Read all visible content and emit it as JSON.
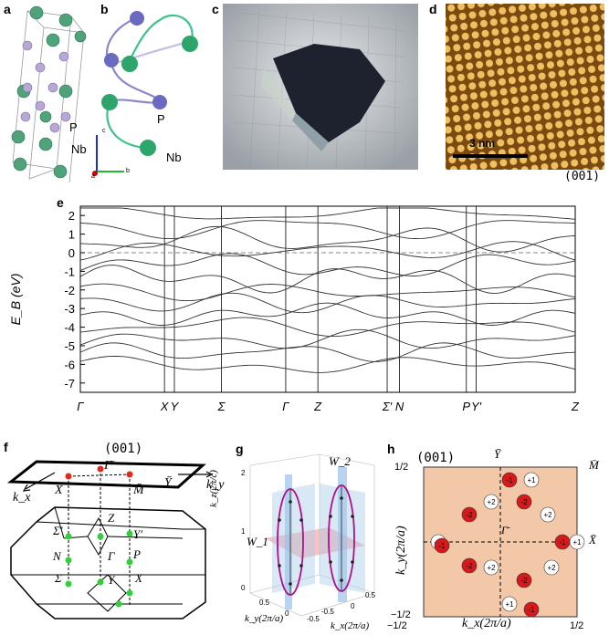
{
  "panels": {
    "a": {
      "letter": "a",
      "atom_labels": [
        "P",
        "Nb"
      ]
    },
    "b": {
      "letter": "b",
      "atom_labels": [
        "P",
        "Nb"
      ],
      "axes": [
        "c",
        "b",
        "a"
      ]
    },
    "c": {
      "letter": "c"
    },
    "d": {
      "letter": "d",
      "scale_bar": "3 nm",
      "facet": "(001)"
    },
    "e": {
      "letter": "e"
    },
    "f": {
      "letter": "f",
      "facet": "(001)"
    },
    "g": {
      "letter": "g"
    },
    "h": {
      "letter": "h",
      "facet": "(001)"
    }
  },
  "chart_data": {
    "type": "line",
    "ylabel": "E_B (eV)",
    "ylim": [
      -7.5,
      2.5
    ],
    "yticks": [
      "2",
      "1",
      "0",
      "-1",
      "-2",
      "-3",
      "-4",
      "-5",
      "-6",
      "-7"
    ],
    "kpath": [
      "Γ",
      "X",
      "Y",
      "Σ",
      "Γ",
      "Z",
      "Σ′",
      "N",
      "P",
      "Y′",
      "Z"
    ],
    "kpath_positions": [
      0,
      0.17,
      0.19,
      0.285,
      0.415,
      0.48,
      0.62,
      0.645,
      0.78,
      0.8,
      1.0
    ],
    "fermi_level": 0
  },
  "bz": {
    "points": [
      "Γ̄",
      "Ȳ",
      "X̄",
      "M̄",
      "Σ′",
      "Z",
      "Y′",
      "N",
      "Γ",
      "P",
      "Σ",
      "Y",
      "X"
    ],
    "axes": [
      "k_x",
      "k_y"
    ]
  },
  "panel_g": {
    "labels": [
      "W_2",
      "W_1"
    ],
    "zaxis": "k_z(2π/c)",
    "xaxis": "k_x(2π/a)",
    "yaxis": "k_y(2π/a)",
    "zticks": [
      "2",
      "1",
      "0"
    ],
    "xyticks": [
      "0.5",
      "0",
      "-0.5"
    ]
  },
  "panel_h": {
    "top_label": "Ȳ",
    "corner_label": "M̄",
    "right_label": "X̄",
    "center_label": "Γ̄",
    "ylabel": "k_y(2π/a)",
    "xlabel": "k_x(2π/a)",
    "yticks": [
      "1/2",
      "−1/2"
    ],
    "xticks": [
      "−1/2",
      "1/2"
    ],
    "charges": [
      {
        "q": "-1",
        "r": true
      },
      {
        "q": "+1",
        "r": false
      },
      {
        "q": "-2",
        "r": true
      },
      {
        "q": "+2",
        "r": false
      },
      {
        "q": "-2",
        "r": true
      },
      {
        "q": "+2",
        "r": false
      },
      {
        "q": "+1",
        "r": false
      },
      {
        "q": "-1",
        "r": true
      },
      {
        "q": "+1",
        "r": false
      },
      {
        "q": "-1",
        "r": true
      },
      {
        "q": "+2",
        "r": false
      },
      {
        "q": "-2",
        "r": true
      },
      {
        "q": "+2",
        "r": false
      },
      {
        "q": "-2",
        "r": true
      },
      {
        "q": "+1",
        "r": false
      },
      {
        "q": "-1",
        "r": true
      }
    ]
  },
  "colors": {
    "nb": "#4fa37a",
    "p": "#8a86c8",
    "fermi": "#888888",
    "h_bg": "#f2c8a8",
    "neg": "#d7191c"
  }
}
